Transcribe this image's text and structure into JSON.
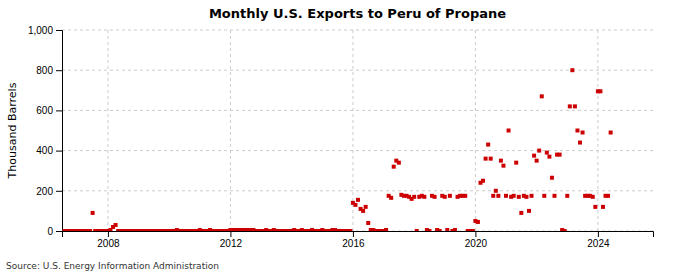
{
  "chart_data": {
    "type": "scatter",
    "title": "Monthly U.S. Exports to Peru of Propane",
    "ylabel": "Thousand Barrels",
    "annotations": [
      "Source: U.S. Energy Information Administration"
    ],
    "color": "#cc0000",
    "marker": "square",
    "grid": true,
    "xlim": [
      2006.5,
      2025.8
    ],
    "xticks": [
      2008,
      2012,
      2016,
      2020,
      2024
    ],
    "ylim": [
      0,
      1000
    ],
    "yticks": [
      0,
      200,
      400,
      600,
      800,
      {
        "value": 1000,
        "label": "1,000"
      }
    ],
    "x": [
      2006.583,
      2006.667,
      2006.75,
      2006.833,
      2006.917,
      2007.0,
      2007.083,
      2007.167,
      2007.25,
      2007.333,
      2007.417,
      2007.5,
      2007.583,
      2007.667,
      2007.75,
      2007.833,
      2007.917,
      2008.0,
      2008.083,
      2008.167,
      2008.25,
      2008.333,
      2008.417,
      2008.5,
      2008.583,
      2008.667,
      2008.75,
      2008.833,
      2008.917,
      2009.0,
      2009.083,
      2009.167,
      2009.25,
      2009.333,
      2009.417,
      2009.5,
      2009.583,
      2009.667,
      2009.75,
      2009.833,
      2009.917,
      2010.0,
      2010.083,
      2010.167,
      2010.25,
      2010.333,
      2010.417,
      2010.5,
      2010.583,
      2010.667,
      2010.75,
      2010.833,
      2010.917,
      2011.0,
      2011.083,
      2011.167,
      2011.25,
      2011.333,
      2011.417,
      2011.5,
      2011.583,
      2011.667,
      2011.75,
      2011.833,
      2011.917,
      2012.0,
      2012.083,
      2012.167,
      2012.25,
      2012.333,
      2012.417,
      2012.5,
      2012.583,
      2012.667,
      2012.75,
      2012.833,
      2012.917,
      2013.0,
      2013.083,
      2013.167,
      2013.25,
      2013.333,
      2013.417,
      2013.5,
      2013.583,
      2013.667,
      2013.75,
      2013.833,
      2013.917,
      2014.0,
      2014.083,
      2014.167,
      2014.25,
      2014.333,
      2014.417,
      2014.5,
      2014.583,
      2014.667,
      2014.75,
      2014.833,
      2014.917,
      2015.0,
      2015.083,
      2015.167,
      2015.25,
      2015.333,
      2015.417,
      2015.5,
      2015.583,
      2015.667,
      2015.75,
      2015.833,
      2015.917,
      2016.0,
      2016.083,
      2016.167,
      2016.25,
      2016.333,
      2016.417,
      2016.5,
      2016.583,
      2016.667,
      2016.75,
      2016.833,
      2016.917,
      2017.0,
      2017.083,
      2017.167,
      2017.25,
      2017.333,
      2017.417,
      2017.5,
      2017.583,
      2017.667,
      2017.75,
      2017.833,
      2017.917,
      2018.0,
      2018.083,
      2018.167,
      2018.25,
      2018.333,
      2018.417,
      2018.5,
      2018.583,
      2018.667,
      2018.75,
      2018.833,
      2018.917,
      2019.0,
      2019.083,
      2019.167,
      2019.25,
      2019.333,
      2019.417,
      2019.5,
      2019.583,
      2019.667,
      2019.75,
      2019.833,
      2019.917,
      2020.0,
      2020.083,
      2020.167,
      2020.25,
      2020.333,
      2020.417,
      2020.5,
      2020.583,
      2020.667,
      2020.75,
      2020.833,
      2020.917,
      2021.0,
      2021.083,
      2021.167,
      2021.25,
      2021.333,
      2021.417,
      2021.5,
      2021.583,
      2021.667,
      2021.75,
      2021.833,
      2021.917,
      2022.0,
      2022.083,
      2022.167,
      2022.25,
      2022.333,
      2022.417,
      2022.5,
      2022.583,
      2022.667,
      2022.75,
      2022.833,
      2022.917,
      2023.0,
      2023.083,
      2023.167,
      2023.25,
      2023.333,
      2023.417,
      2023.5,
      2023.583,
      2023.667,
      2023.75,
      2023.833,
      2023.917,
      2024.0,
      2024.083,
      2024.167,
      2024.25,
      2024.333,
      2024.417
    ],
    "values": [
      0,
      0,
      0,
      0,
      0,
      0,
      0,
      0,
      0,
      0,
      0,
      90,
      0,
      0,
      0,
      0,
      0,
      0,
      5,
      20,
      30,
      0,
      0,
      0,
      0,
      0,
      0,
      0,
      0,
      0,
      0,
      0,
      0,
      0,
      0,
      0,
      0,
      0,
      0,
      0,
      0,
      0,
      0,
      0,
      5,
      0,
      0,
      0,
      0,
      0,
      0,
      0,
      0,
      5,
      0,
      0,
      0,
      5,
      0,
      0,
      0,
      0,
      0,
      0,
      0,
      5,
      5,
      5,
      5,
      5,
      5,
      5,
      5,
      5,
      5,
      0,
      0,
      0,
      0,
      5,
      0,
      0,
      5,
      0,
      0,
      0,
      0,
      0,
      0,
      0,
      5,
      0,
      0,
      5,
      0,
      0,
      0,
      5,
      0,
      0,
      0,
      5,
      0,
      0,
      0,
      5,
      5,
      0,
      0,
      0,
      0,
      0,
      0,
      140,
      130,
      155,
      110,
      100,
      120,
      40,
      5,
      5,
      0,
      0,
      0,
      0,
      5,
      175,
      165,
      320,
      350,
      340,
      180,
      175,
      175,
      170,
      160,
      170,
      0,
      170,
      175,
      170,
      5,
      0,
      175,
      170,
      5,
      0,
      175,
      170,
      5,
      175,
      0,
      5,
      170,
      175,
      175,
      175,
      0,
      0,
      0,
      50,
      45,
      240,
      250,
      360,
      430,
      360,
      175,
      200,
      175,
      350,
      325,
      175,
      500,
      170,
      175,
      340,
      170,
      90,
      175,
      170,
      100,
      175,
      375,
      350,
      400,
      670,
      175,
      390,
      370,
      265,
      175,
      380,
      380,
      5,
      0,
      175,
      620,
      800,
      620,
      500,
      440,
      490,
      175,
      175,
      175,
      170,
      120,
      695,
      695,
      120,
      175,
      175,
      490
    ]
  }
}
